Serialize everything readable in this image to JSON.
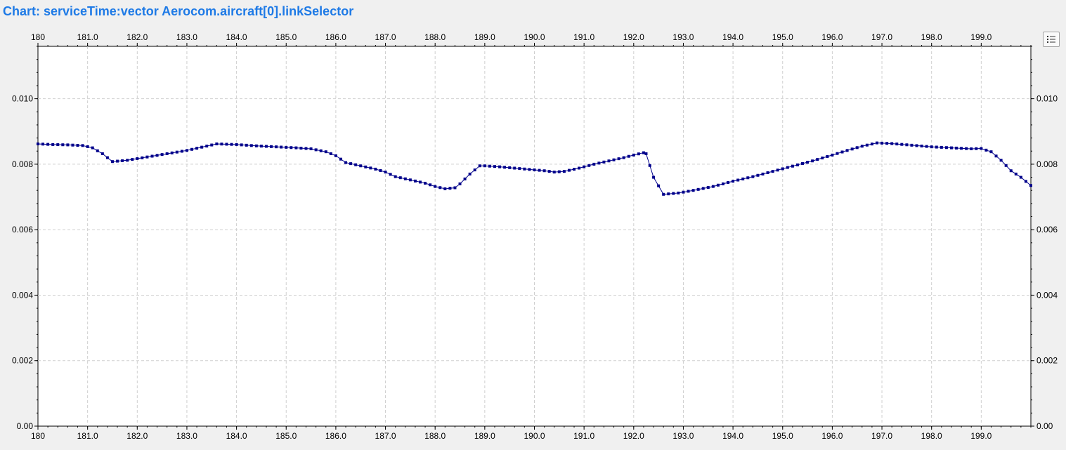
{
  "chart_data": {
    "type": "line",
    "title": "Chart: serviceTime:vector Aerocom.aircraft[0].linkSelector",
    "xlabel": "",
    "ylabel": "",
    "xlim": [
      180,
      200
    ],
    "ylim": [
      0,
      0.0116
    ],
    "x_ticks": [
      180,
      181,
      182,
      183,
      184,
      185,
      186,
      187,
      188,
      189,
      190,
      191,
      192,
      193,
      194,
      195,
      196,
      197,
      198,
      199
    ],
    "x_tick_labels": [
      "180",
      "181.0",
      "182.0",
      "183.0",
      "184.0",
      "185.0",
      "186.0",
      "187.0",
      "188.0",
      "189.0",
      "190.0",
      "191.0",
      "192.0",
      "193.0",
      "194.0",
      "195.0",
      "196.0",
      "197.0",
      "198.0",
      "199.0"
    ],
    "y_ticks": [
      0,
      0.002,
      0.004,
      0.006,
      0.008,
      0.01
    ],
    "y_tick_labels": [
      "0.00",
      "0.002",
      "0.004",
      "0.006",
      "0.008",
      "0.010"
    ],
    "grid": true,
    "line_color": "#00008b",
    "marker": "square",
    "series": [
      {
        "x": [
          180.0,
          180.3,
          180.6,
          180.9,
          181.1,
          181.3,
          181.5,
          181.8,
          182.2,
          182.6,
          183.0,
          183.3,
          183.6,
          184.0,
          184.4,
          184.8,
          185.2,
          185.5,
          185.8,
          186.0,
          186.2,
          186.5,
          186.8,
          187.0,
          187.2,
          187.5,
          187.8,
          188.0,
          188.2,
          188.4,
          188.5,
          188.7,
          188.9,
          189.0,
          189.3,
          189.6,
          189.9,
          190.2,
          190.4,
          190.6,
          190.9,
          191.2,
          191.5,
          191.8,
          192.0,
          192.2,
          192.25,
          192.4,
          192.6,
          192.9,
          193.2,
          193.6,
          194.0,
          194.4,
          194.8,
          195.2,
          195.6,
          196.0,
          196.3,
          196.6,
          196.9,
          197.2,
          197.6,
          198.0,
          198.4,
          198.8,
          199.0,
          199.2,
          199.4,
          199.6,
          199.8,
          200.0
        ],
        "y": [
          0.00862,
          0.0086,
          0.00859,
          0.00857,
          0.0085,
          0.00832,
          0.00808,
          0.00812,
          0.00822,
          0.00832,
          0.00842,
          0.00852,
          0.00862,
          0.0086,
          0.00856,
          0.00853,
          0.0085,
          0.00847,
          0.00838,
          0.00826,
          0.00805,
          0.00795,
          0.00785,
          0.00776,
          0.00762,
          0.00752,
          0.00742,
          0.00732,
          0.00725,
          0.00728,
          0.0074,
          0.0077,
          0.00795,
          0.00795,
          0.00792,
          0.00788,
          0.00784,
          0.0078,
          0.00776,
          0.00778,
          0.00788,
          0.008,
          0.0081,
          0.0082,
          0.00828,
          0.00835,
          0.00832,
          0.0076,
          0.00708,
          0.00712,
          0.0072,
          0.00732,
          0.00748,
          0.00762,
          0.00778,
          0.00794,
          0.0081,
          0.00828,
          0.00842,
          0.00855,
          0.00865,
          0.00863,
          0.00858,
          0.00853,
          0.0085,
          0.00847,
          0.00848,
          0.00838,
          0.00812,
          0.0078,
          0.0076,
          0.00735
        ]
      }
    ]
  },
  "controls": {
    "legend_button_icon": "list-icon"
  }
}
